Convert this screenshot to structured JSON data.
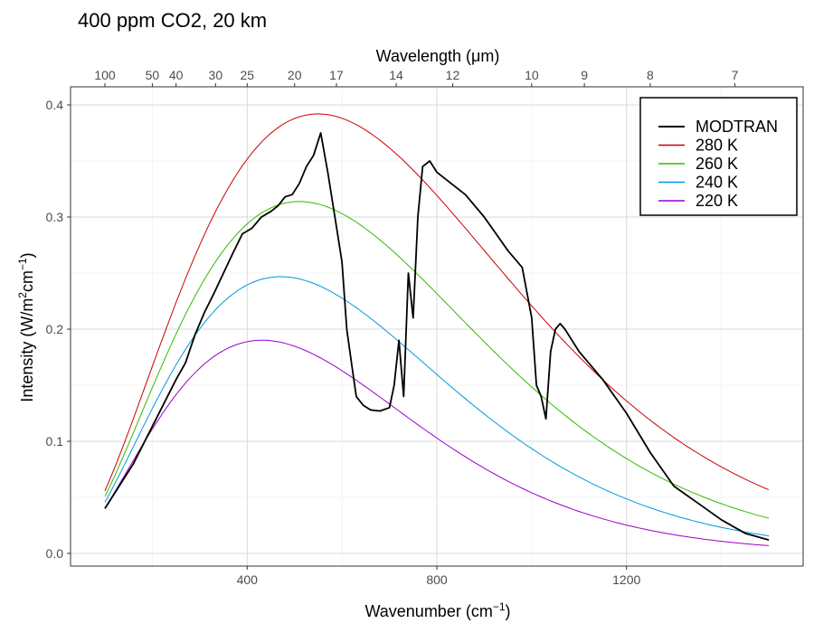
{
  "chart_data": {
    "type": "line",
    "title": "400 ppm CO2, 20 km",
    "xlabel": "Wavenumber",
    "xlabel_unit": "(cm",
    "xlabel_sup": "−1",
    "xlabel_close": ")",
    "ylabel": "Intensity (W/m",
    "ylabel_sup1": "2",
    "ylabel_mid": "cm",
    "ylabel_sup2": "−1",
    "ylabel_close": ")",
    "x2label": "Wavelength (μm)",
    "xlim": [
      100,
      1500
    ],
    "ylim": [
      0,
      0.4
    ],
    "x_ticks": [
      400,
      800,
      1200
    ],
    "y_ticks": [
      "0.0",
      "0.1",
      "0.2",
      "0.3",
      "0.4"
    ],
    "x2_ticks": [
      "100",
      "50",
      "40",
      "30",
      "25",
      "20",
      "17",
      "14",
      "12",
      "10",
      "9",
      "8",
      "7"
    ],
    "grid": true,
    "legend_position": "top-right",
    "series": [
      {
        "name": "MODTRAN",
        "color": "#000000",
        "width": 1.8,
        "x": [
          100,
          130,
          160,
          190,
          220,
          250,
          270,
          290,
          310,
          330,
          350,
          370,
          390,
          410,
          430,
          450,
          465,
          480,
          495,
          510,
          525,
          540,
          555,
          570,
          585,
          600,
          610,
          620,
          630,
          645,
          660,
          680,
          700,
          710,
          720,
          730,
          740,
          750,
          760,
          770,
          785,
          800,
          830,
          860,
          900,
          950,
          980,
          1000,
          1010,
          1020,
          1030,
          1040,
          1050,
          1060,
          1070,
          1100,
          1150,
          1200,
          1250,
          1300,
          1350,
          1400,
          1450,
          1500
        ],
        "y": [
          0.04,
          0.06,
          0.08,
          0.105,
          0.13,
          0.155,
          0.17,
          0.195,
          0.215,
          0.232,
          0.25,
          0.268,
          0.285,
          0.29,
          0.3,
          0.305,
          0.31,
          0.318,
          0.32,
          0.33,
          0.345,
          0.355,
          0.375,
          0.34,
          0.3,
          0.26,
          0.2,
          0.17,
          0.14,
          0.132,
          0.128,
          0.127,
          0.13,
          0.15,
          0.19,
          0.14,
          0.25,
          0.21,
          0.3,
          0.345,
          0.35,
          0.34,
          0.33,
          0.32,
          0.3,
          0.27,
          0.255,
          0.21,
          0.15,
          0.14,
          0.12,
          0.18,
          0.2,
          0.205,
          0.2,
          0.18,
          0.155,
          0.125,
          0.09,
          0.06,
          0.045,
          0.03,
          0.018,
          0.012
        ]
      },
      {
        "name": "280 K",
        "color": "#cc0000",
        "temp": 280,
        "width": 1.0
      },
      {
        "name": "260 K",
        "color": "#33bb00",
        "temp": 260,
        "width": 1.0
      },
      {
        "name": "240 K",
        "color": "#0099dd",
        "temp": 240,
        "width": 1.0
      },
      {
        "name": "220 K",
        "color": "#9900cc",
        "temp": 220,
        "width": 1.0
      }
    ]
  }
}
